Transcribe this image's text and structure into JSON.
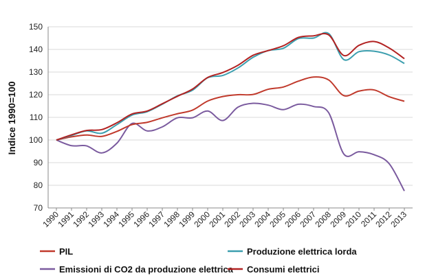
{
  "chart_data": {
    "type": "line",
    "title": "",
    "xlabel": "",
    "ylabel": "Indice 1990=100",
    "ylim": [
      70,
      150
    ],
    "yticks": [
      70,
      80,
      90,
      100,
      110,
      120,
      130,
      140,
      150
    ],
    "x": [
      "1990",
      "1991",
      "1992",
      "1993",
      "1994",
      "1995",
      "1996",
      "1997",
      "1998",
      "1999",
      "2000",
      "2001",
      "2002",
      "2003",
      "2004",
      "2005",
      "2006",
      "2007",
      "2008",
      "2009",
      "2010",
      "2011",
      "2012",
      "2013"
    ],
    "grid": "horizontal",
    "legend_position": "bottom",
    "series": [
      {
        "name": "PIL",
        "color": "#c0392b",
        "values": [
          100,
          101.4,
          102.2,
          101.6,
          103.8,
          106.8,
          107.8,
          109.8,
          111.6,
          113.2,
          117.2,
          119.2,
          120.0,
          120.1,
          122.4,
          123.4,
          126.0,
          127.8,
          126.5,
          119.6,
          121.6,
          122.1,
          119.1,
          117.1
        ]
      },
      {
        "name": "Produzione elettrica lorda",
        "color": "#3b9eae",
        "values": [
          100,
          102.0,
          104.0,
          103.0,
          106.8,
          111.0,
          112.5,
          115.8,
          119.5,
          122.0,
          127.5,
          128.5,
          131.8,
          136.5,
          139.5,
          140.5,
          144.8,
          145.0,
          147.0,
          135.5,
          139.0,
          139.2,
          137.5,
          133.8
        ]
      },
      {
        "name": "Emissioni di CO2 da produzione elettrica",
        "color": "#7a5a9e",
        "values": [
          100,
          97.5,
          97.4,
          94.3,
          98.6,
          107.3,
          104.0,
          105.8,
          109.8,
          109.8,
          112.8,
          108.6,
          114.5,
          116.2,
          115.4,
          113.4,
          115.8,
          114.8,
          112.0,
          93.8,
          94.8,
          93.5,
          89.5,
          77.5
        ]
      },
      {
        "name": "Consumi elettrici",
        "color": "#b22222",
        "values": [
          100,
          102.3,
          104.2,
          104.6,
          107.6,
          111.5,
          112.8,
          116.0,
          119.3,
          122.5,
          127.6,
          129.8,
          133.0,
          137.4,
          139.5,
          141.6,
          145.3,
          146.0,
          146.4,
          137.3,
          141.8,
          143.5,
          140.6,
          135.9
        ]
      }
    ]
  }
}
